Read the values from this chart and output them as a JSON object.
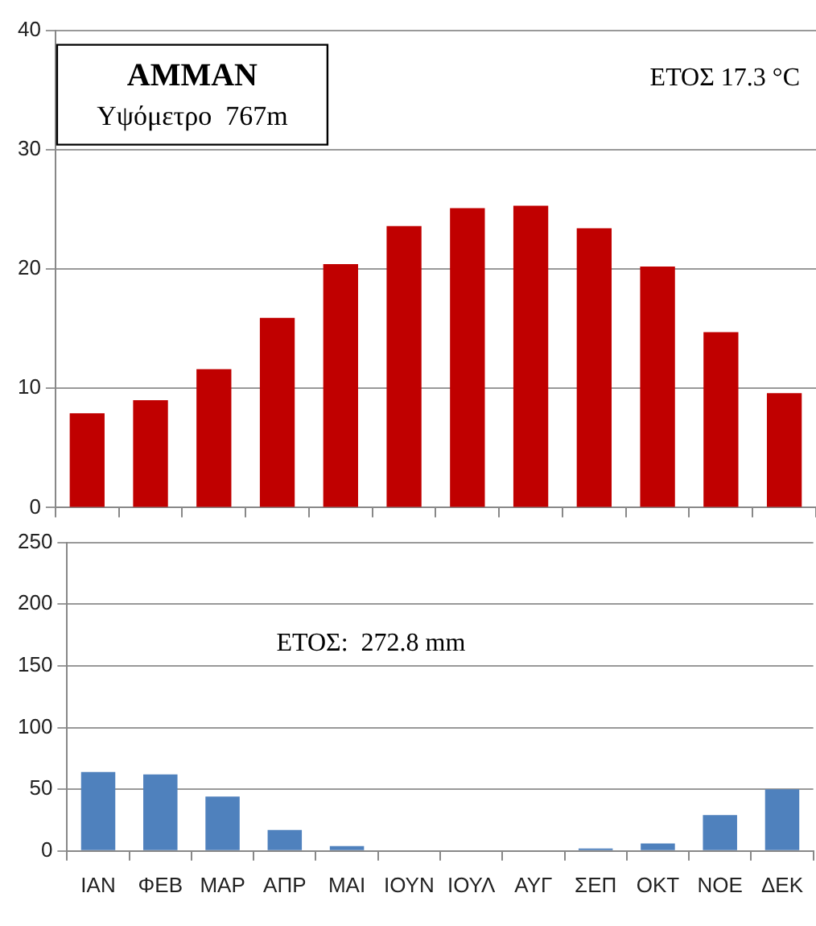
{
  "chart_data": [
    {
      "type": "bar",
      "categories": [
        null,
        null,
        null,
        null,
        null,
        null,
        null,
        null,
        null,
        null,
        null,
        null
      ],
      "values": [
        7.9,
        9.0,
        11.6,
        15.9,
        20.4,
        23.6,
        25.1,
        25.3,
        23.4,
        20.2,
        14.7,
        9.6
      ],
      "color": "#c00000",
      "ylim": [
        0,
        40
      ],
      "yticks": [
        0,
        10,
        20,
        30,
        40
      ],
      "grid": "y",
      "tick_labels": "y",
      "annotations": [
        "AMMAN",
        "Υψόμετρο  767m",
        "ΕΤΟΣ 17.3 °C"
      ]
    },
    {
      "type": "bar",
      "categories": [
        "ΙΑΝ",
        "ΦΕΒ",
        "ΜΑΡ",
        "ΑΠΡ",
        "ΜΑΙ",
        "ΙΟΥΝ",
        "ΙΟΥΛ",
        "ΑΥΓ",
        "ΣΕΠ",
        "ΟΚΤ",
        "ΝΟΕ",
        "ΔΕΚ"
      ],
      "values": [
        64,
        62,
        44,
        17,
        4,
        0,
        0,
        0,
        2,
        6,
        29,
        50
      ],
      "color": "#4f81bd",
      "ylim": [
        0,
        250
      ],
      "yticks": [
        0,
        50,
        100,
        150,
        200,
        250
      ],
      "grid": "y",
      "annotations": [
        "ΕΤΟΣ:  272.8 mm"
      ]
    }
  ]
}
